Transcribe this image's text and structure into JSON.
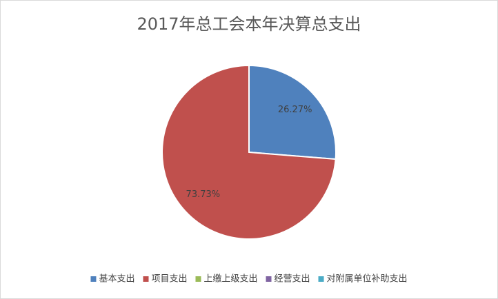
{
  "chart_data": {
    "type": "pie",
    "title": "2017年总工会本年决算总支出",
    "categories": [
      "基本支出",
      "项目支出",
      "上缴上级支出",
      "经营支出",
      "对附属单位补助支出"
    ],
    "values": [
      26.27,
      73.73,
      0,
      0,
      0
    ],
    "value_labels": [
      "26.27%",
      "73.73%",
      null,
      null,
      null
    ],
    "colors": [
      "#4f81bd",
      "#c0504d",
      "#9bbb59",
      "#8064a2",
      "#4bacc6"
    ],
    "legend": "bottom"
  }
}
